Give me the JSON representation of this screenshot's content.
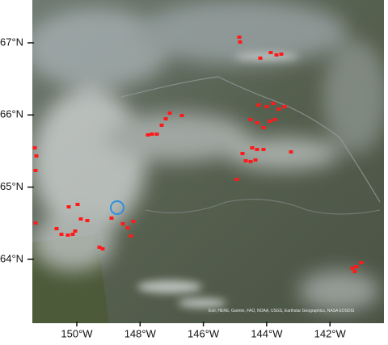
{
  "map": {
    "latitude_labels": [
      "67°N",
      "66°N",
      "65°N",
      "64°N"
    ],
    "longitude_labels": [
      "150°W",
      "148°W",
      "146°W",
      "144°W",
      "142°W"
    ],
    "attribution": "Esri, HERE, Garmin, FAO, NOAA, USGS, Earthstar Geographics, NASA EOSDIS"
  }
}
